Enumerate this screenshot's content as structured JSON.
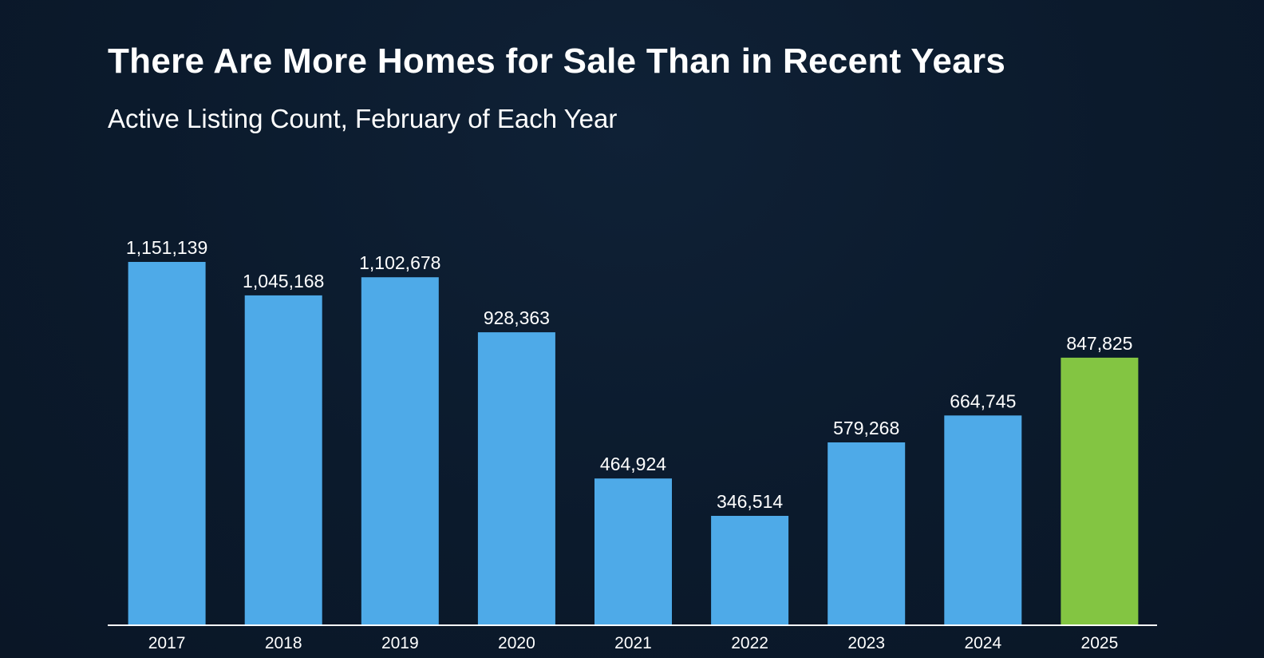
{
  "chart_data": {
    "type": "bar",
    "title": "There Are More Homes for Sale Than in Recent Years",
    "subtitle": "Active Listing Count, February of Each Year",
    "categories": [
      "2017",
      "2018",
      "2019",
      "2020",
      "2021",
      "2022",
      "2023",
      "2024",
      "2025"
    ],
    "values": [
      1151139,
      1045168,
      1102678,
      928363,
      464924,
      346514,
      579268,
      664745,
      847825
    ],
    "labels": [
      "1,151,139",
      "1,045,168",
      "1,102,678",
      "928,363",
      "464,924",
      "346,514",
      "579,268",
      "664,745",
      "847,825"
    ],
    "highlight_index": 8,
    "ylim": [
      0,
      1151139
    ],
    "xlabel": "",
    "ylabel": "",
    "grid": false
  },
  "colors": {
    "bar": "#4eaae8",
    "highlight": "#83c542",
    "axis": "#ffffff",
    "text": "#ffffff"
  }
}
